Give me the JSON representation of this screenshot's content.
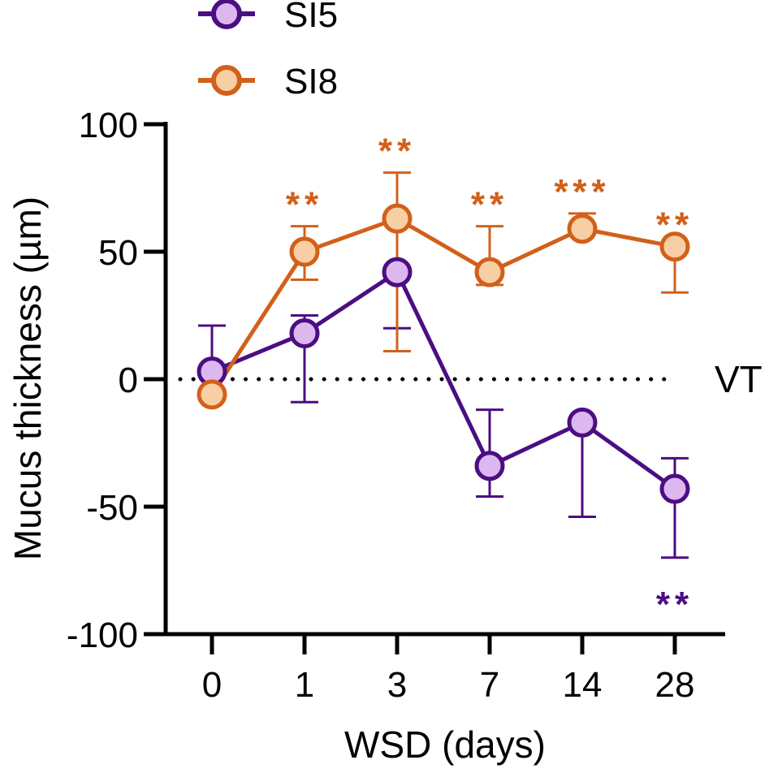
{
  "chart_data": {
    "type": "line",
    "title": "",
    "xlabel": "WSD (days)",
    "ylabel": "Mucus thickness (µm)",
    "categories": [
      "0",
      "1",
      "3",
      "7",
      "14",
      "28"
    ],
    "ylim": [
      -100,
      100
    ],
    "yticks": [
      "100",
      "50",
      "0",
      "-50",
      "-100"
    ],
    "reference_line": {
      "value": 0,
      "label": "VT",
      "style": "dotted"
    },
    "legend": {
      "position": "top-left"
    },
    "series": [
      {
        "name": "SI5",
        "line_color": "#4B0E82",
        "marker_fill": "#DDB7EF",
        "values": [
          3,
          18,
          42,
          -34,
          -17,
          -43
        ],
        "error_upper": [
          21,
          25,
          42,
          -12,
          -17,
          -31
        ],
        "error_lower": [
          3,
          -9,
          20,
          -46,
          -54,
          -70
        ],
        "significance": [
          "",
          "",
          "",
          "",
          "",
          "**"
        ],
        "significance_position": "below"
      },
      {
        "name": "SI8",
        "line_color": "#D2601A",
        "marker_fill": "#F8CFA4",
        "values": [
          -6,
          50,
          63,
          42,
          59,
          52
        ],
        "error_upper": [
          -6,
          60,
          81,
          60,
          65,
          52
        ],
        "error_lower": [
          -6,
          39,
          11,
          37,
          59,
          34
        ],
        "significance": [
          "",
          "**",
          "**",
          "**",
          "***",
          "**"
        ],
        "significance_position": "above"
      }
    ]
  }
}
